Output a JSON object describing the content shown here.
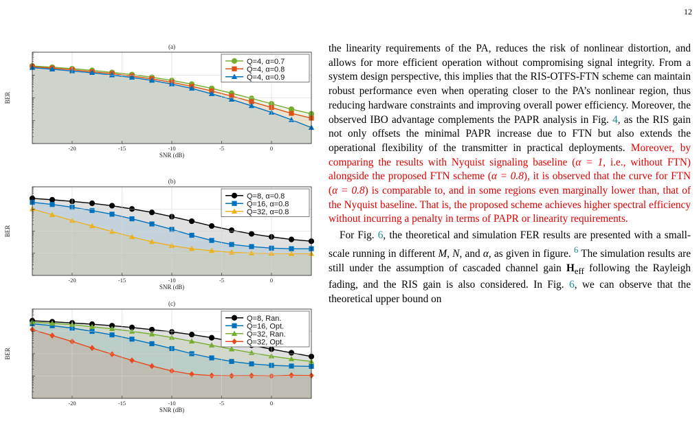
{
  "page_number": "12",
  "chart_data": [
    {
      "type": "line",
      "title": "(a)",
      "xlabel": "SNR (dB)",
      "ylabel": "BER",
      "log_y": true,
      "xlim": [
        -24,
        4
      ],
      "ylim": [
        0.0001,
        1
      ],
      "xticks": [
        -20,
        -15,
        -10,
        -5,
        0
      ],
      "xtick_labels": [
        "-20",
        "-15",
        "-10",
        "-5",
        "0"
      ],
      "grid": true,
      "legend": "top-right",
      "x": [
        -24,
        -22,
        -20,
        -18,
        -16,
        -14,
        -12,
        -10,
        -8,
        -6,
        -4,
        -2,
        0,
        2,
        4
      ],
      "series": [
        {
          "name": "Q=4, α=0.7",
          "color": "#77ac30",
          "marker": "circle",
          "values": [
            0.25,
            0.22,
            0.19,
            0.16,
            0.13,
            0.105,
            0.08,
            0.058,
            0.04,
            0.026,
            0.016,
            0.0095,
            0.0055,
            0.0032,
            0.002
          ]
        },
        {
          "name": "Q=4, α=0.8",
          "color": "#d95319",
          "marker": "square",
          "values": [
            0.23,
            0.2,
            0.17,
            0.14,
            0.115,
            0.09,
            0.068,
            0.048,
            0.032,
            0.02,
            0.012,
            0.0068,
            0.0038,
            0.0021,
            0.0013
          ]
        },
        {
          "name": "Q=4, α=0.9",
          "color": "#0072bd",
          "marker": "triangle",
          "values": [
            0.21,
            0.18,
            0.15,
            0.125,
            0.1,
            0.078,
            0.058,
            0.04,
            0.026,
            0.015,
            0.0085,
            0.0045,
            0.0023,
            0.0011,
            0.0005
          ]
        }
      ]
    },
    {
      "type": "line",
      "title": "(b)",
      "xlabel": "SNR (dB)",
      "ylabel": "BER",
      "log_y": true,
      "xlim": [
        -24,
        4
      ],
      "ylim": [
        0.0001,
        1
      ],
      "xticks": [
        -20,
        -15,
        -10,
        -5,
        0
      ],
      "xtick_labels": [
        "-20",
        "-15",
        "-10",
        "-5",
        "0"
      ],
      "grid": true,
      "legend": "top-right",
      "x": [
        -24,
        -22,
        -20,
        -18,
        -16,
        -14,
        -12,
        -10,
        -8,
        -6,
        -4,
        -2,
        0,
        2,
        4
      ],
      "series": [
        {
          "name": "Q=8, α=0.8",
          "color": "#000000",
          "marker": "circle",
          "values": [
            0.3,
            0.26,
            0.22,
            0.18,
            0.14,
            0.1,
            0.07,
            0.045,
            0.028,
            0.017,
            0.011,
            0.0075,
            0.0055,
            0.0042,
            0.0035
          ]
        },
        {
          "name": "Q=16, α=0.8",
          "color": "#0072bd",
          "marker": "square",
          "values": [
            0.2,
            0.16,
            0.12,
            0.085,
            0.058,
            0.036,
            0.021,
            0.012,
            0.0065,
            0.0038,
            0.0025,
            0.002,
            0.0017,
            0.0016,
            0.0016
          ]
        },
        {
          "name": "Q=32, α=0.8",
          "color": "#edb120",
          "marker": "triangle",
          "values": [
            0.1,
            0.055,
            0.03,
            0.017,
            0.0095,
            0.0055,
            0.0033,
            0.0022,
            0.0016,
            0.0013,
            0.0011,
            0.00102,
            0.00098,
            0.00096,
            0.00095
          ]
        }
      ]
    },
    {
      "type": "line",
      "title": "(c)",
      "xlabel": "SNR (dB)",
      "ylabel": "BER",
      "log_y": true,
      "xlim": [
        -24,
        4
      ],
      "ylim": [
        0.0001,
        1
      ],
      "xticks": [
        -20,
        -15,
        -10,
        -5,
        0
      ],
      "xtick_labels": [
        "-20",
        "-15",
        "-10",
        "-5",
        "0"
      ],
      "grid": true,
      "legend": "top-right",
      "x": [
        -24,
        -22,
        -20,
        -18,
        -16,
        -14,
        -12,
        -10,
        -8,
        -6,
        -4,
        -2,
        0,
        2,
        4
      ],
      "series": [
        {
          "name": "Q=8, Ran.",
          "color": "#000000",
          "marker": "circle",
          "values": [
            0.3,
            0.27,
            0.24,
            0.21,
            0.18,
            0.15,
            0.12,
            0.095,
            0.072,
            0.052,
            0.036,
            0.024,
            0.016,
            0.011,
            0.0075
          ]
        },
        {
          "name": "Q=16, Opt.",
          "color": "#0072bd",
          "marker": "square",
          "values": [
            0.22,
            0.18,
            0.14,
            0.1,
            0.07,
            0.045,
            0.028,
            0.017,
            0.01,
            0.0065,
            0.0045,
            0.0035,
            0.003,
            0.0028,
            0.0027
          ]
        },
        {
          "name": "Q=32, Ran.",
          "color": "#77ac30",
          "marker": "triangle",
          "values": [
            0.26,
            0.23,
            0.2,
            0.16,
            0.13,
            0.1,
            0.075,
            0.053,
            0.036,
            0.024,
            0.016,
            0.011,
            0.0078,
            0.0058,
            0.0045
          ]
        },
        {
          "name": "Q=32, Opt.",
          "color": "#e8491d",
          "marker": "diamond",
          "values": [
            0.12,
            0.065,
            0.035,
            0.018,
            0.0095,
            0.005,
            0.0028,
            0.0017,
            0.0012,
            0.00105,
            0.00102,
            0.00104,
            0.001,
            0.00108,
            0.00105
          ]
        }
      ]
    }
  ],
  "text": {
    "p1_s1": "the linearity requirements of the PA, reduces the risk of nonlinear distortion, and allows for more efficient operation without compromising signal integrity. From a system design perspective, this implies that the RIS-OTFS-FTN scheme can maintain robust performance even when operating closer to the PA’s nonlinear region, thus reducing hardware constraints and improving overall power efficiency. Moreover, the observed IBO advantage complements the PAPR analysis in Fig. ",
    "p1_ref": "4",
    "p1_s2": ", as the RIS gain not only offsets the minimal PAPR increase due to FTN but also extends the operational flexibility of the transmitter in practical deployments. ",
    "p1_red_a": "Moreover, by comparing the results with Nyquist signaling baseline (",
    "p1_red_math1": "α = 1",
    "p1_red_b": ", i.e., without FTN) alongside the proposed FTN scheme (",
    "p1_red_math2": "α = 0.8",
    "p1_red_c": "), it is observed that the curve for FTN (",
    "p1_red_math3": "α = 0.8",
    "p1_red_d": ") is comparable to, and in some regions even marginally lower than, that of the Nyquist baseline. That is, the proposed scheme achieves higher spectral efficiency without incurring a penalty in terms of PAPR or linearity requirements.",
    "p2_a": "For Fig. ",
    "p2_ref1": "6",
    "p2_b": ", the theoretical and simulation FER results are presented with a small-scale running in different ",
    "p2_M": "M",
    "p2_c": ", ",
    "p2_N": "N",
    "p2_d": ", and ",
    "p2_alpha": "α",
    "p2_e": ", as given in figure. ",
    "p2_fn": "6",
    "p2_f": " The simulation results are still under the assumption of cascaded channel gain ",
    "p2_H": "H",
    "p2_Hsub": "eff",
    "p2_g": " following the Rayleigh fading, and the RIS gain is also considered. In Fig. ",
    "p2_ref2": "6",
    "p2_h": ", we can observe that the theoretical upper bound on"
  }
}
